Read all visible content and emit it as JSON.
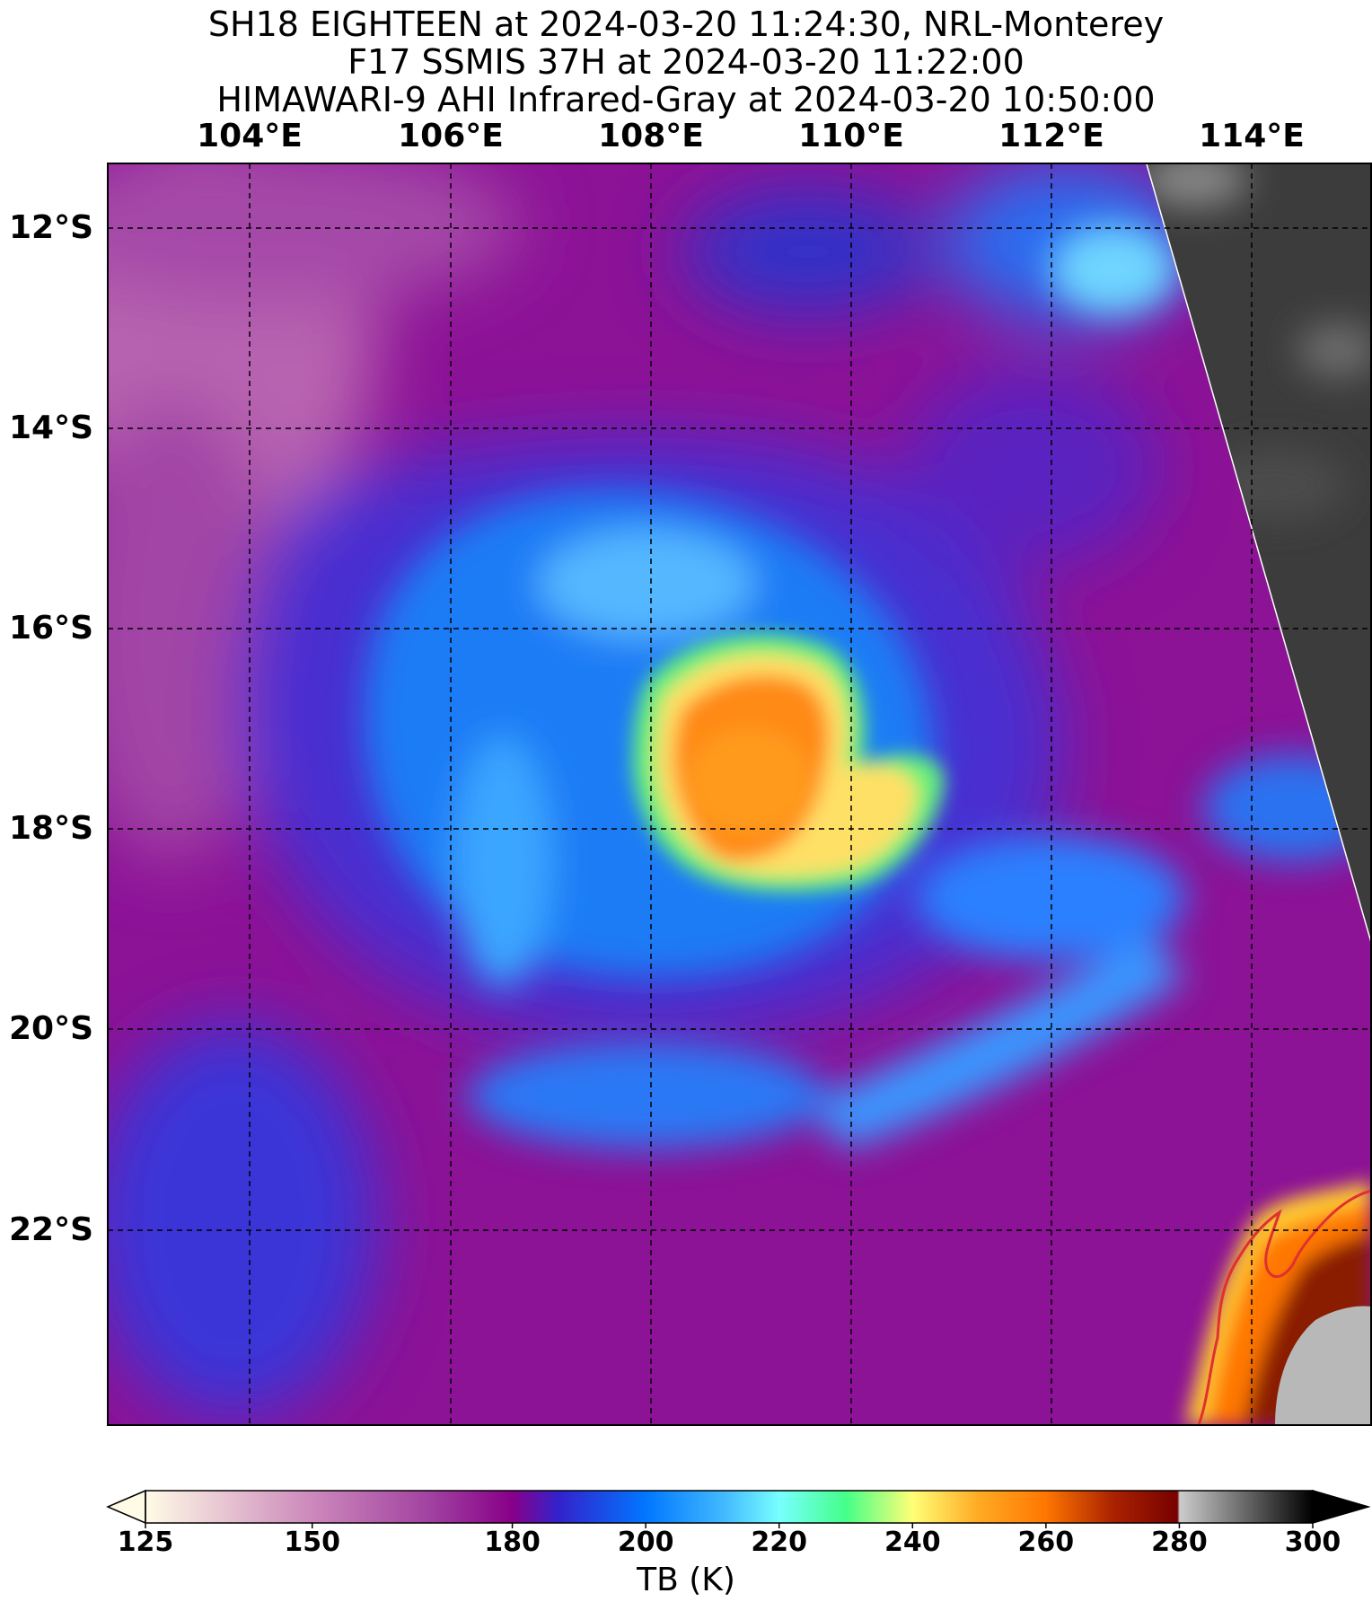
{
  "titles": [
    "SH18 EIGHTEEN at 2024-03-20 11:24:30, NRL-Monterey",
    "F17 SSMIS 37H at 2024-03-20 11:22:00",
    "HIMAWARI-9 AHI Infrared-Gray at 2024-03-20 10:50:00"
  ],
  "map": {
    "lon_labels": [
      "104°E",
      "106°E",
      "108°E",
      "110°E",
      "112°E",
      "114°E"
    ],
    "lat_labels": [
      "12°S",
      "14°S",
      "16°S",
      "18°S",
      "20°S",
      "22°S"
    ],
    "lon_range": [
      102.6,
      115.2
    ],
    "lat_range": [
      -23.8,
      -11.4
    ],
    "gridlines": "dashed black",
    "coastline_color": "#e03030"
  },
  "colorbar": {
    "label": "TB (K)",
    "ticks": [
      "125",
      "150",
      "180",
      "200",
      "220",
      "240",
      "260",
      "280",
      "300"
    ],
    "tick_values": [
      125,
      150,
      180,
      200,
      220,
      240,
      260,
      280,
      300
    ],
    "range": [
      125,
      300
    ],
    "stops": [
      {
        "value": 125,
        "color": "#fffbe6"
      },
      {
        "value": 150,
        "color": "#cc88bb"
      },
      {
        "value": 168,
        "color": "#a040a0"
      },
      {
        "value": 180,
        "color": "#880088"
      },
      {
        "value": 187,
        "color": "#3322cc"
      },
      {
        "value": 200,
        "color": "#0077ff"
      },
      {
        "value": 212,
        "color": "#44bbff"
      },
      {
        "value": 220,
        "color": "#77ffff"
      },
      {
        "value": 230,
        "color": "#44ff88"
      },
      {
        "value": 240,
        "color": "#ffff77"
      },
      {
        "value": 250,
        "color": "#ffaa22"
      },
      {
        "value": 260,
        "color": "#ff7700"
      },
      {
        "value": 270,
        "color": "#aa2200"
      },
      {
        "value": 280,
        "color": "#770000"
      },
      {
        "value": 280.5,
        "color": "#cccccc"
      },
      {
        "value": 300,
        "color": "#000000"
      }
    ]
  }
}
